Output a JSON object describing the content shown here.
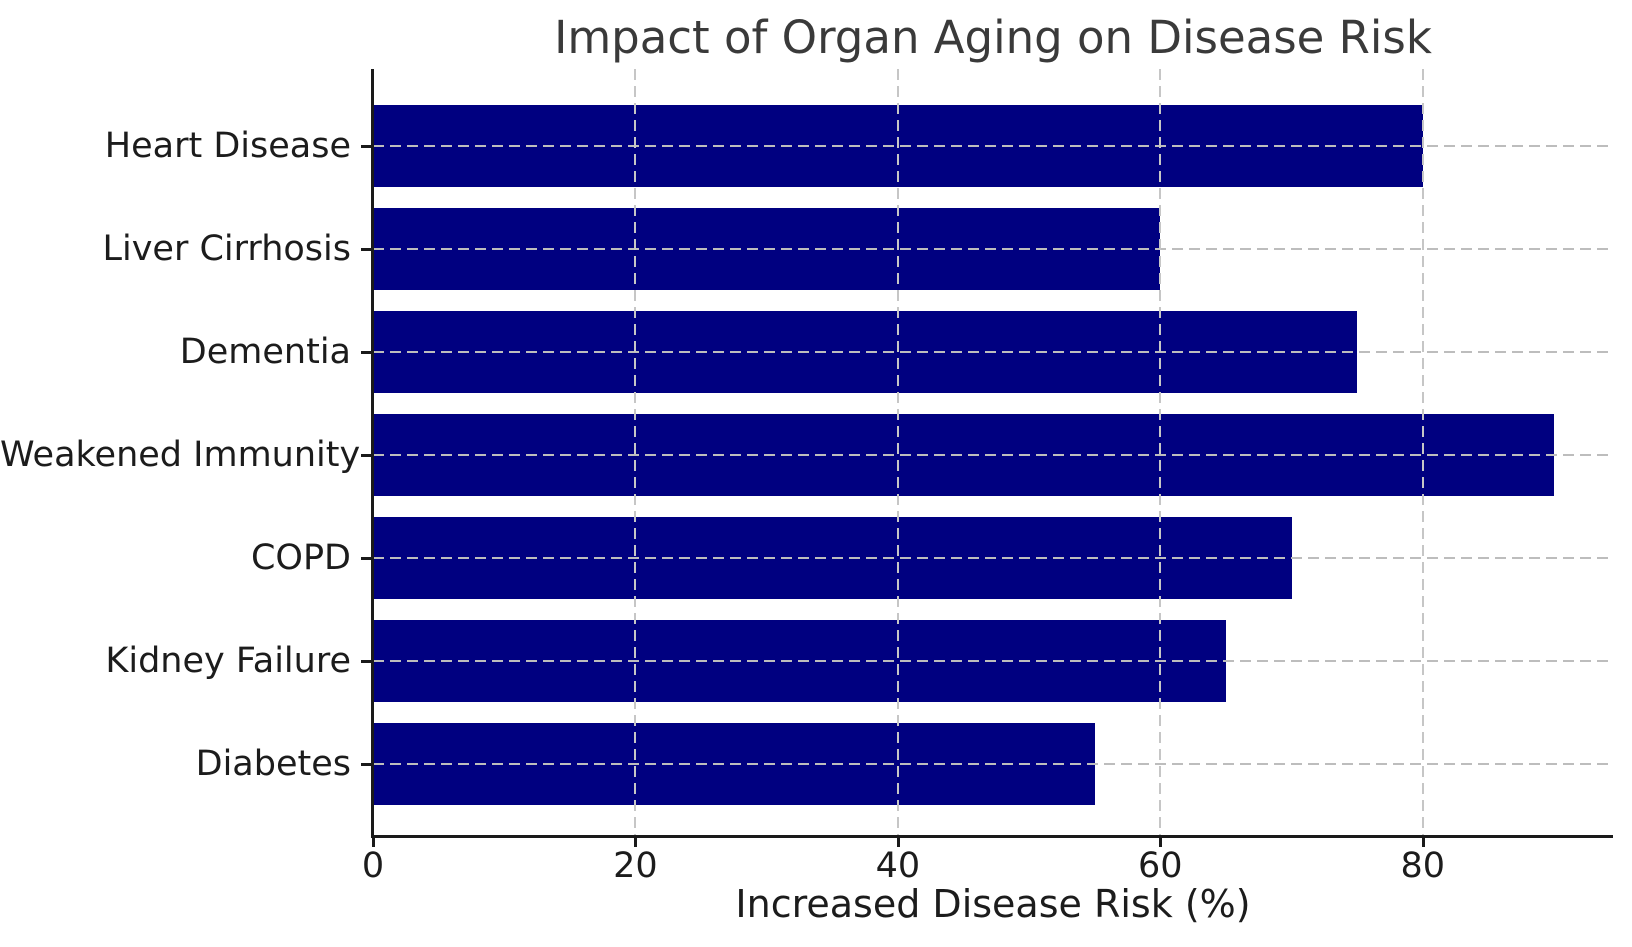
{
  "chart_data": {
    "type": "bar",
    "orientation": "horizontal",
    "title": "Impact of Organ Aging on Disease Risk",
    "xlabel": "Increased Disease Risk (%)",
    "ylabel": "",
    "categories": [
      "Heart Disease",
      "Liver Cirrhosis",
      "Dementia",
      "Weakened Immunity",
      "COPD",
      "Kidney Failure",
      "Diabetes"
    ],
    "values": [
      80,
      60,
      75,
      90,
      70,
      65,
      55
    ],
    "x_ticks": [
      0,
      20,
      40,
      60,
      80
    ],
    "xlim": [
      0,
      94.5
    ],
    "grid": "dashed, both axes, drawn over bars",
    "legend": "none",
    "colors": {
      "bar": "#000080",
      "grid": "#c0c0c0",
      "axis": "#1a1a1a",
      "tick_label": "#1c1c1c",
      "title": "#3a3a3a",
      "background": "#ffffff"
    }
  }
}
